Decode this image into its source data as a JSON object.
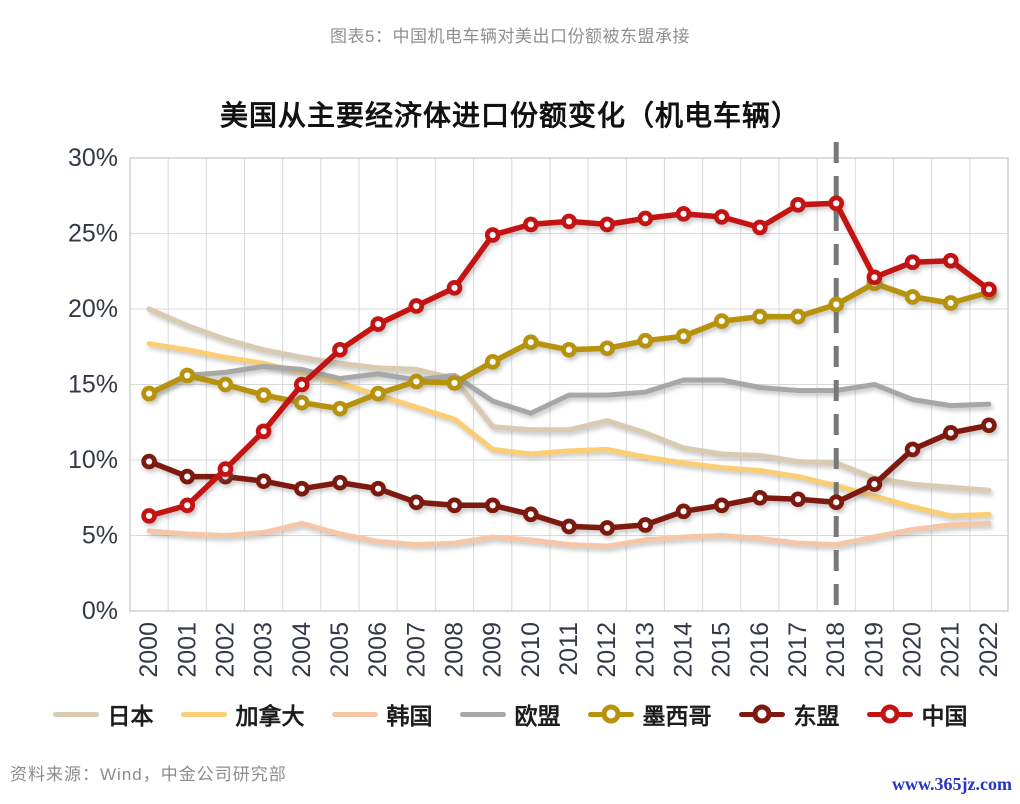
{
  "header": {
    "caption": "图表5：中国机电车辆对美出口份额被东盟承接"
  },
  "chart_data": {
    "type": "line",
    "title": "美国从主要经济体进口份额变化（机电车辆）",
    "x": [
      2000,
      2001,
      2002,
      2003,
      2004,
      2005,
      2006,
      2007,
      2008,
      2009,
      2010,
      2011,
      2012,
      2013,
      2014,
      2015,
      2016,
      2017,
      2018,
      2019,
      2020,
      2021,
      2022
    ],
    "x_tick_labels": [
      "2000",
      "2001",
      "2002",
      "2003",
      "2004",
      "2005",
      "2006",
      "2007",
      "2008",
      "2009",
      "2010",
      "2011",
      "2012",
      "2013",
      "2014",
      "2015",
      "2016",
      "2017",
      "2018",
      "2019",
      "2020",
      "2021",
      "2022"
    ],
    "x_label_rotation": -90,
    "ylim": [
      0,
      30
    ],
    "y_tick_step": 5,
    "y_tick_labels": [
      "0%",
      "5%",
      "10%",
      "15%",
      "20%",
      "25%",
      "30%"
    ],
    "grid": true,
    "legend_position": "bottom",
    "annotation": {
      "type": "vline-dashed",
      "x": 2018,
      "color": "#787878"
    },
    "series": [
      {
        "id": "japan",
        "name": "日本",
        "color": "#d9cbb2",
        "marker": false,
        "values": [
          20.0,
          18.9,
          18.0,
          17.3,
          16.8,
          16.4,
          16.1,
          16.0,
          15.4,
          12.2,
          12.0,
          12.0,
          12.6,
          11.8,
          10.8,
          10.4,
          10.3,
          9.9,
          9.8,
          8.8,
          8.4,
          8.2,
          8.0
        ]
      },
      {
        "id": "canada",
        "name": "加拿大",
        "color": "#fbce74",
        "marker": false,
        "values": [
          17.7,
          17.3,
          16.8,
          16.4,
          15.8,
          15.1,
          14.3,
          13.5,
          12.7,
          10.7,
          10.4,
          10.6,
          10.7,
          10.2,
          9.8,
          9.5,
          9.3,
          8.9,
          8.3,
          7.6,
          6.9,
          6.3,
          6.4
        ]
      },
      {
        "id": "korea",
        "name": "韩国",
        "color": "#f5c7a6",
        "marker": false,
        "values": [
          5.3,
          5.1,
          5.0,
          5.2,
          5.8,
          5.1,
          4.6,
          4.4,
          4.5,
          4.9,
          4.7,
          4.4,
          4.3,
          4.7,
          4.9,
          5.0,
          4.8,
          4.5,
          4.4,
          4.9,
          5.4,
          5.7,
          5.8
        ]
      },
      {
        "id": "eu",
        "name": "欧盟",
        "color": "#a7a7a7",
        "marker": false,
        "values": [
          14.4,
          15.6,
          15.8,
          16.2,
          16.0,
          15.4,
          15.7,
          15.3,
          15.6,
          13.9,
          13.1,
          14.3,
          14.3,
          14.5,
          15.3,
          15.3,
          14.8,
          14.6,
          14.6,
          15.0,
          14.0,
          13.6,
          13.7
        ]
      },
      {
        "id": "mexico",
        "name": "墨西哥",
        "color": "#b6920d",
        "marker": true,
        "values": [
          14.4,
          15.6,
          15.0,
          14.3,
          13.8,
          13.4,
          14.4,
          15.2,
          15.1,
          16.5,
          17.8,
          17.3,
          17.4,
          17.9,
          18.2,
          19.2,
          19.5,
          19.5,
          20.3,
          21.7,
          20.8,
          20.4,
          21.1
        ]
      },
      {
        "id": "asean",
        "name": "东盟",
        "color": "#7d1a10",
        "marker": true,
        "values": [
          9.9,
          8.9,
          8.9,
          8.6,
          8.1,
          8.5,
          8.1,
          7.2,
          7.0,
          7.0,
          6.4,
          5.6,
          5.5,
          5.7,
          6.6,
          7.0,
          7.5,
          7.4,
          7.2,
          8.4,
          10.7,
          11.8,
          12.3
        ]
      },
      {
        "id": "china",
        "name": "中国",
        "color": "#c31313",
        "marker": true,
        "values": [
          6.3,
          7.0,
          9.4,
          11.9,
          15.0,
          17.3,
          19.0,
          20.2,
          21.4,
          24.9,
          25.6,
          25.8,
          25.6,
          26.0,
          26.3,
          26.1,
          25.4,
          26.9,
          27.0,
          22.1,
          23.1,
          23.2,
          21.3
        ]
      }
    ]
  },
  "footer": {
    "source": "资料来源：Wind，中金公司研究部",
    "watermark": "www.365jz.com"
  }
}
